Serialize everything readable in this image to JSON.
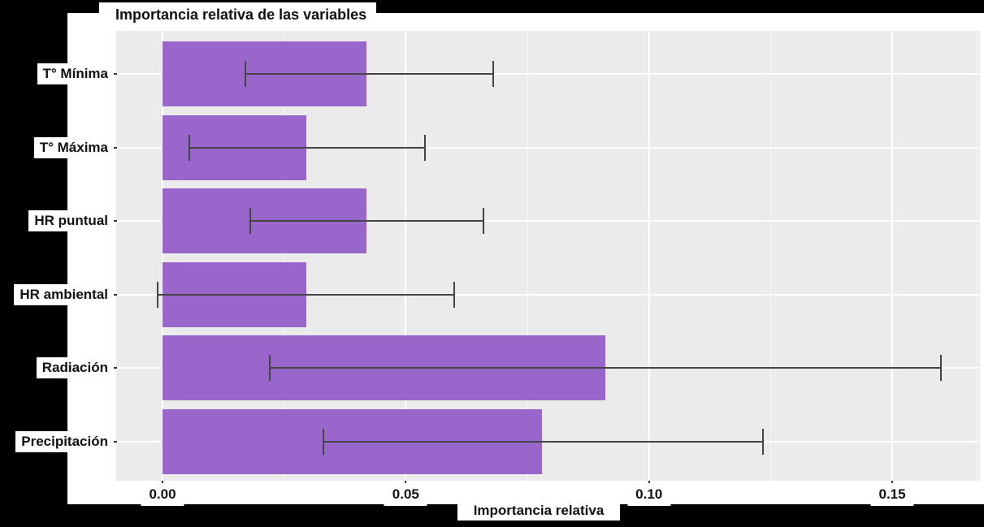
{
  "title": "Importancia relativa de las variables",
  "xlabel": "Importancia relativa",
  "chart_data": {
    "type": "bar",
    "orientation": "horizontal",
    "title": "Importancia relativa de las variables",
    "xlabel": "Importancia relativa",
    "ylabel": "",
    "categories": [
      "T° Mínima",
      "T° Máxima",
      "HR puntual",
      "HR ambiental",
      "Radiación",
      "Precipitación"
    ],
    "values": [
      0.042,
      0.0295,
      0.042,
      0.0295,
      0.091,
      0.078
    ],
    "error_low": [
      0.017,
      0.0055,
      0.018,
      -0.001,
      0.022,
      0.033
    ],
    "error_high": [
      0.068,
      0.054,
      0.066,
      0.06,
      0.16,
      0.1235
    ],
    "x_ticks": [
      0,
      0.05,
      0.1,
      0.15
    ],
    "x_tick_labels": [
      "0.00",
      "0.05",
      "0.10",
      "0.15"
    ],
    "x_minor_ticks": [
      0.025,
      0.075,
      0.125,
      0.1675
    ],
    "xlim": [
      -0.0095,
      0.168
    ],
    "grid": true,
    "legend": null
  },
  "colors": {
    "bar": "#9966CC",
    "panel": "#EBEBEB",
    "background": "#000000",
    "gridline": "#FFFFFF",
    "error_bar": "#444444",
    "label_bg": "#FFFFFF",
    "text": "#111111"
  }
}
